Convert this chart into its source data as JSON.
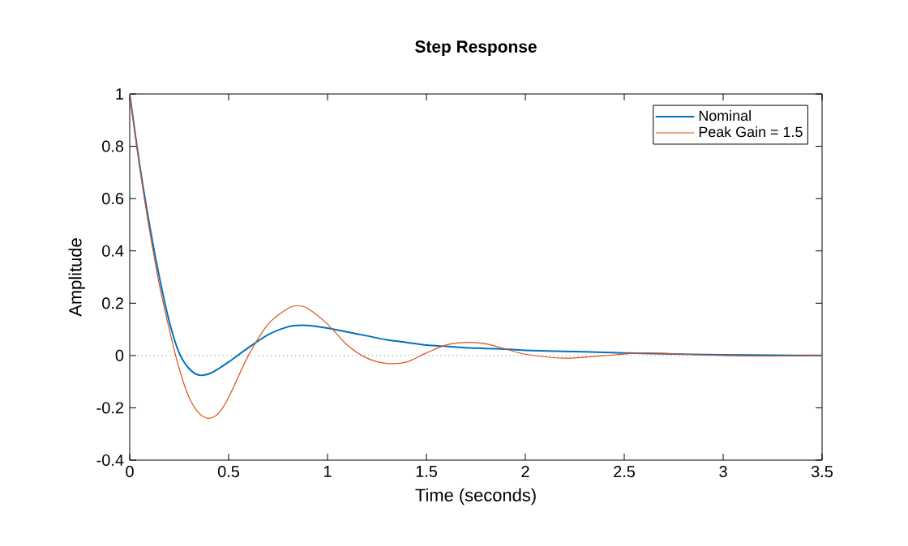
{
  "chart_data": {
    "type": "line",
    "title": "Step Response",
    "xlabel": "Time (seconds)",
    "ylabel": "Amplitude",
    "x": [
      0,
      0.05,
      0.1,
      0.15,
      0.2,
      0.25,
      0.3,
      0.35,
      0.4,
      0.45,
      0.5,
      0.6,
      0.7,
      0.8,
      0.85,
      0.9,
      1.0,
      1.1,
      1.2,
      1.3,
      1.4,
      1.5,
      1.6,
      1.7,
      1.8,
      1.9,
      2.0,
      2.2,
      2.4,
      2.6,
      2.8,
      3.0,
      3.25,
      3.5
    ],
    "series": [
      {
        "name": "Nominal",
        "color": "#0072bd",
        "values": [
          1,
          0.73,
          0.5,
          0.3,
          0.13,
          0.01,
          -0.05,
          -0.075,
          -0.07,
          -0.05,
          -0.025,
          0.03,
          0.08,
          0.11,
          0.115,
          0.115,
          0.105,
          0.09,
          0.075,
          0.06,
          0.05,
          0.04,
          0.035,
          0.03,
          0.027,
          0.024,
          0.02,
          0.016,
          0.012,
          0.008,
          0.005,
          0.003,
          0.001,
          0
        ]
      },
      {
        "name": "Peak Gain = 1.5",
        "color": "#d95319",
        "values": [
          1,
          0.72,
          0.48,
          0.27,
          0.1,
          -0.05,
          -0.16,
          -0.22,
          -0.24,
          -0.22,
          -0.16,
          0,
          0.12,
          0.18,
          0.19,
          0.18,
          0.12,
          0.04,
          -0.01,
          -0.03,
          -0.025,
          0.01,
          0.04,
          0.05,
          0.045,
          0.025,
          0.005,
          -0.01,
          0,
          0.01,
          0.005,
          0,
          -0.002,
          0
        ]
      }
    ],
    "xlim": [
      0,
      3.5
    ],
    "xticks": [
      0,
      0.5,
      1,
      1.5,
      2,
      2.5,
      3,
      3.5
    ],
    "ylim": [
      -0.4,
      1
    ],
    "yticks": [
      -0.4,
      -0.2,
      0,
      0.2,
      0.4,
      0.6,
      0.8,
      1
    ],
    "ref_lines": [
      {
        "axis": "y",
        "value": 0,
        "color": "#808080",
        "line_style": "dotted"
      }
    ],
    "grid": false,
    "legend": "top right",
    "marker": "none",
    "line_style": "solid"
  }
}
